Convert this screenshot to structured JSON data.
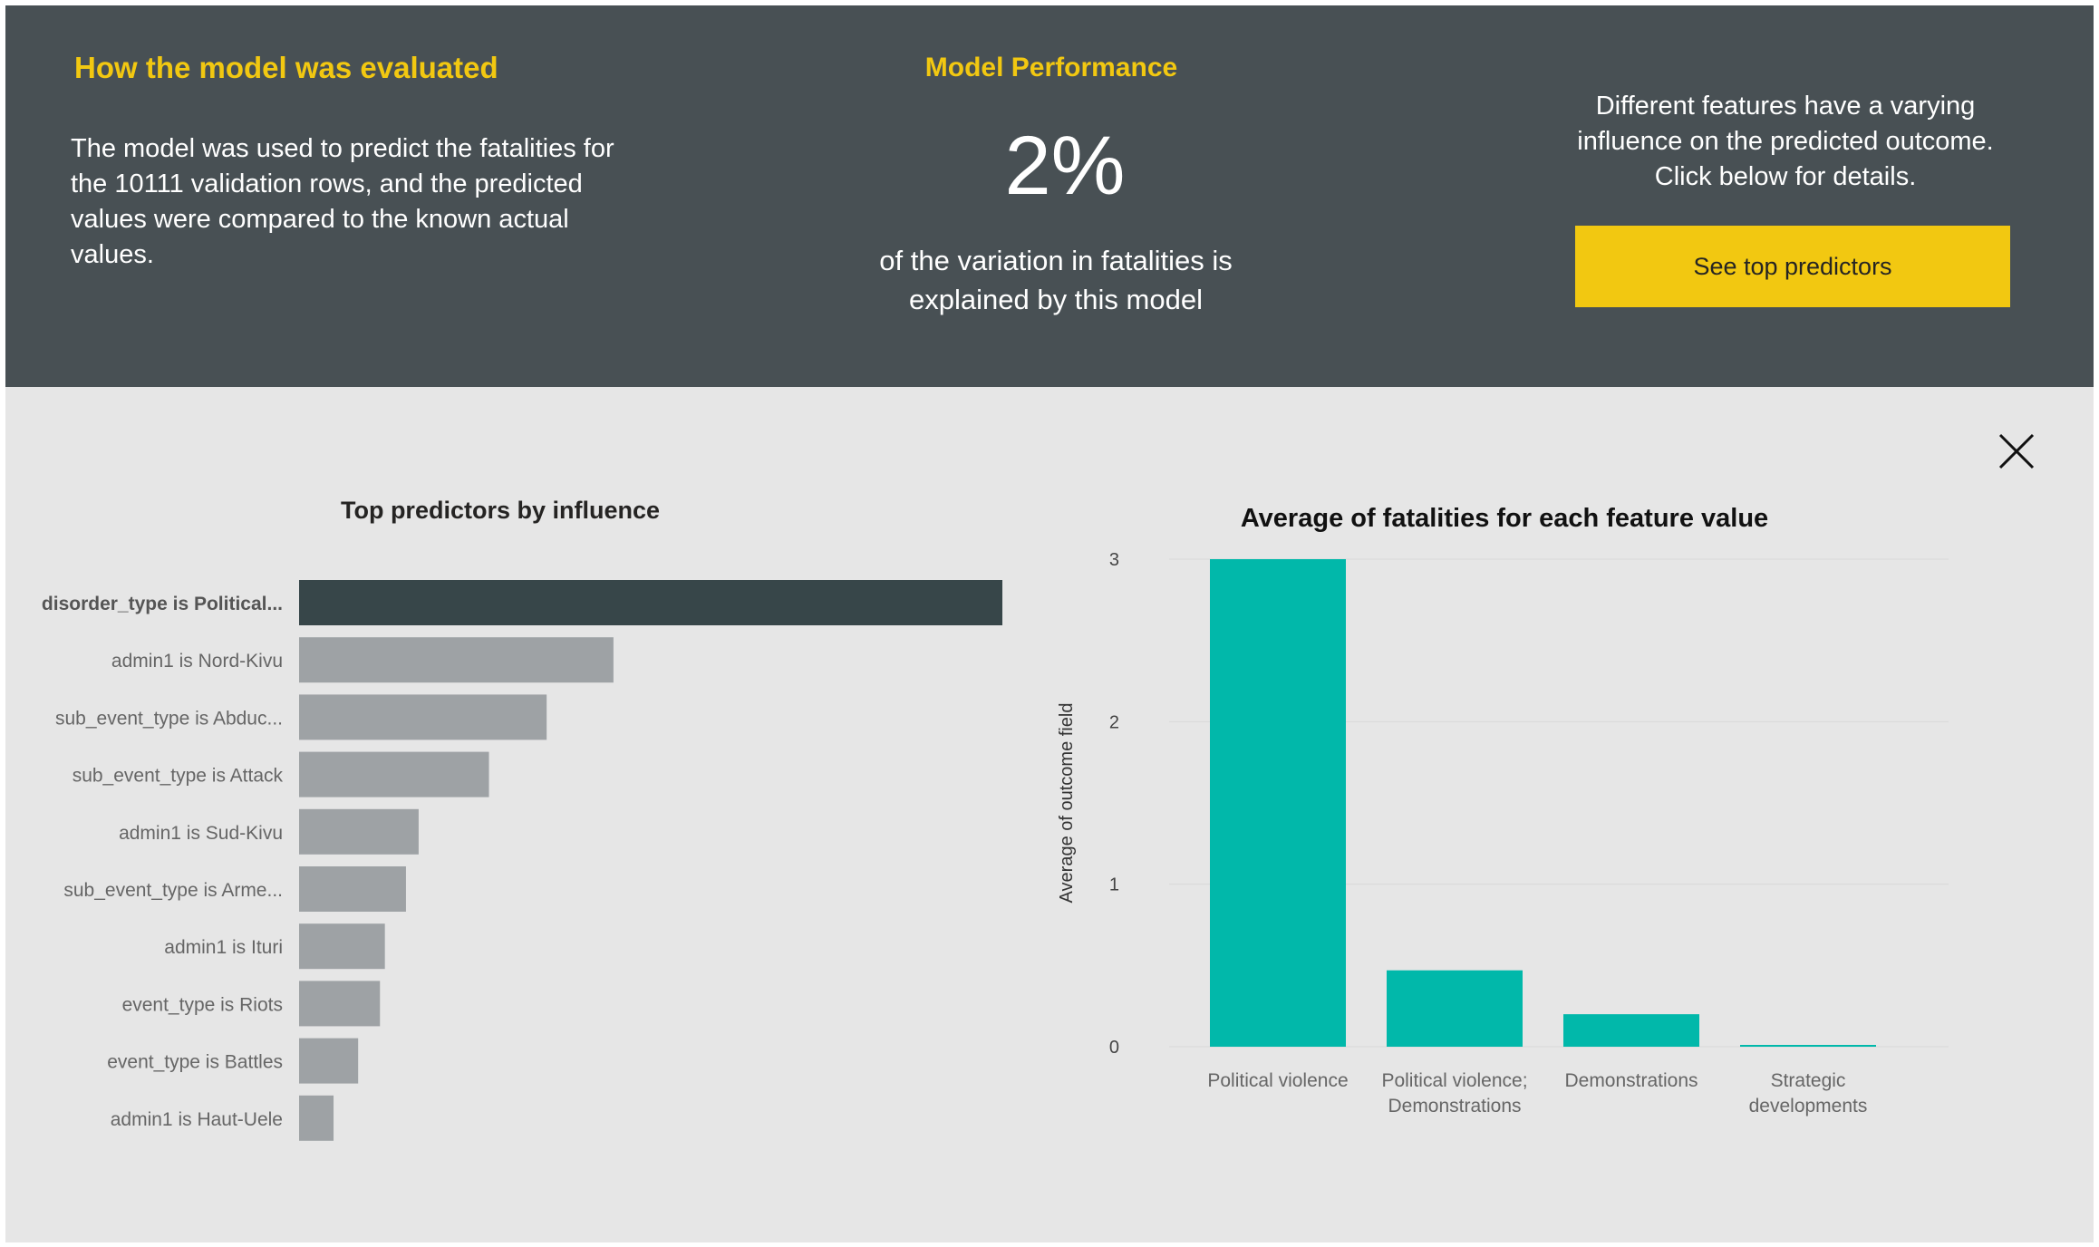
{
  "evaluation": {
    "title": "How the model was evaluated",
    "body": "The model was used to predict the fatalities for the 10111 validation rows, and the predicted values were compared to the known actual values."
  },
  "performance": {
    "title": "Model Performance",
    "value": "2%",
    "description": "of the variation in fatalities is explained by this model"
  },
  "features": {
    "text": "Different features have a varying influence on the predicted outcome. Click below for details.",
    "button_label": "See top predictors"
  },
  "close_icon": "close-icon",
  "colors": {
    "accent": "#F2C811",
    "header_bg": "#485054",
    "panel_bg": "#E6E6E6",
    "bar_selected": "#374649",
    "bar_default": "#9EA2A5",
    "bar_teal": "#01B8AA"
  },
  "chart_data": [
    {
      "type": "bar",
      "orientation": "horizontal",
      "title": "Top predictors by influence",
      "categories": [
        "disorder_type is Political...",
        "admin1 is Nord-Kivu",
        "sub_event_type is Abduc...",
        "sub_event_type is Attack",
        "admin1 is Sud-Kivu",
        "sub_event_type is Arme...",
        "admin1 is Ituri",
        "event_type is Riots",
        "event_type is Battles",
        "admin1 is Haut-Uele"
      ],
      "values": [
        1.0,
        0.447,
        0.352,
        0.27,
        0.17,
        0.152,
        0.122,
        0.115,
        0.084,
        0.049
      ],
      "selected_index": 0
    },
    {
      "type": "bar",
      "title": "Average of fatalities for each feature value",
      "ylabel": "Average of outcome field",
      "categories": [
        "Political violence",
        "Political violence; Demonstrations",
        "Demonstrations",
        "Strategic developments"
      ],
      "category_lines": [
        [
          "Political violence"
        ],
        [
          "Political violence;",
          "Demonstrations"
        ],
        [
          "Demonstrations"
        ],
        [
          "Strategic",
          "developments"
        ]
      ],
      "values": [
        3.0,
        0.47,
        0.2,
        0.01
      ],
      "ylim": [
        0,
        3
      ],
      "yticks": [
        "0",
        "1",
        "2",
        "3"
      ],
      "grid": true
    }
  ]
}
